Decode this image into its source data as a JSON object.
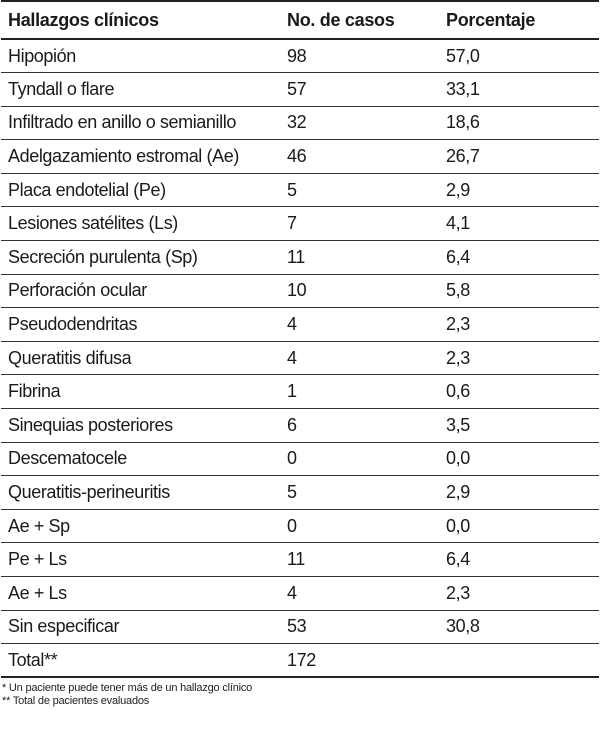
{
  "table": {
    "headers": [
      "Hallazgos clínicos",
      "No. de casos",
      "Porcentaje"
    ],
    "rows": [
      [
        "Hipopión",
        "98",
        "57,0"
      ],
      [
        "Tyndall o flare",
        "57",
        "33,1"
      ],
      [
        "Infiltrado en anillo o semianillo",
        "32",
        "18,6"
      ],
      [
        "Adelgazamiento estromal (Ae)",
        "46",
        "26,7"
      ],
      [
        "Placa endotelial (Pe)",
        "5",
        "2,9"
      ],
      [
        "Lesiones satélites (Ls)",
        "7",
        "4,1"
      ],
      [
        "Secreción purulenta (Sp)",
        "11",
        "6,4"
      ],
      [
        "Perforación ocular",
        "10",
        "5,8"
      ],
      [
        "Pseudodendritas",
        "4",
        "2,3"
      ],
      [
        "Queratitis difusa",
        "4",
        "2,3"
      ],
      [
        "Fibrina",
        "1",
        "0,6"
      ],
      [
        "Sinequias posteriores",
        "6",
        "3,5"
      ],
      [
        "Descematocele",
        "0",
        "0,0"
      ],
      [
        "Queratitis-perineuritis",
        "5",
        "2,9"
      ],
      [
        "Ae + Sp",
        "0",
        "0,0"
      ],
      [
        "Pe + Ls",
        "11",
        "6,4"
      ],
      [
        "Ae + Ls",
        "4",
        "2,3"
      ],
      [
        "Sin especificar",
        "53",
        "30,8"
      ]
    ],
    "total": [
      "Total**",
      "172",
      ""
    ]
  },
  "notes": [
    "* Un paciente puede tener más de un hallazgo clínico",
    "** Total de pacientes evaluados"
  ]
}
